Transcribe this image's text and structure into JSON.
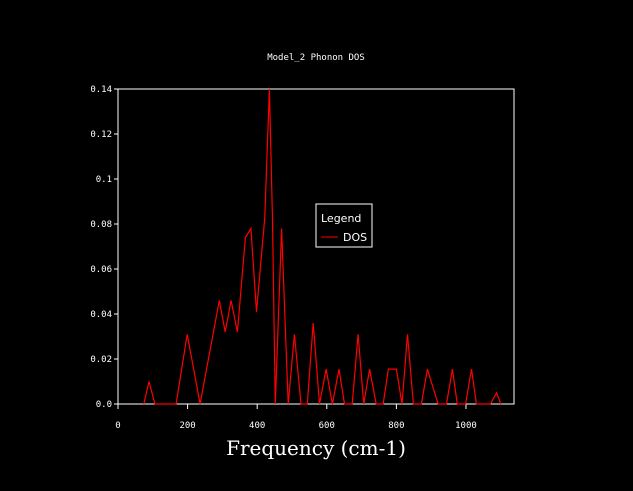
{
  "chart_data": {
    "type": "line",
    "title": "Model_2 Phonon DOS",
    "xlabel": "Frequency (cm-1)",
    "ylabel": "",
    "xlim": [
      0,
      1138
    ],
    "ylim": [
      0,
      0.14
    ],
    "xticks": [
      0,
      200,
      400,
      600,
      800,
      1000
    ],
    "xtick_labels": [
      "0",
      "200",
      "400",
      "600",
      "800",
      "1000"
    ],
    "yticks": [
      0,
      0.02,
      0.04,
      0.06,
      0.08,
      0.1,
      0.12,
      0.14
    ],
    "ytick_labels": [
      "0.0",
      "0.02",
      "0.04",
      "0.06",
      "0.08",
      "0.1",
      "0.12",
      "0.14"
    ],
    "grid": false,
    "legend": {
      "title": "Legend",
      "placement": "center-right",
      "entries": [
        "DOS"
      ]
    },
    "series": [
      {
        "name": "DOS",
        "color": "#ff0000",
        "x": [
          74,
          89,
          106,
          167,
          199,
          236,
          291,
          308,
          325,
          343,
          366,
          382,
          398,
          422,
          435,
          444,
          452,
          470,
          489,
          507,
          526,
          544,
          561,
          579,
          598,
          616,
          635,
          651,
          673,
          690,
          706,
          723,
          742,
          762,
          777,
          800,
          816,
          832,
          849,
          872,
          889,
          920,
          944,
          961,
          975,
          999,
          1016,
          1030,
          1070,
          1088,
          1100
        ],
        "y": [
          0,
          0.01,
          0,
          0,
          0.031,
          0,
          0.046,
          0.032,
          0.046,
          0.032,
          0.074,
          0.078,
          0.041,
          0.083,
          0.14,
          0.082,
          0,
          0.078,
          0,
          0.031,
          0,
          0,
          0.036,
          0,
          0.0155,
          0,
          0.0155,
          0,
          0,
          0.031,
          0,
          0.0155,
          0,
          0,
          0.0155,
          0.0155,
          0,
          0.031,
          0,
          0,
          0.0155,
          0,
          0,
          0.0155,
          0,
          0,
          0.0155,
          0,
          0,
          0.005,
          0
        ]
      }
    ]
  }
}
